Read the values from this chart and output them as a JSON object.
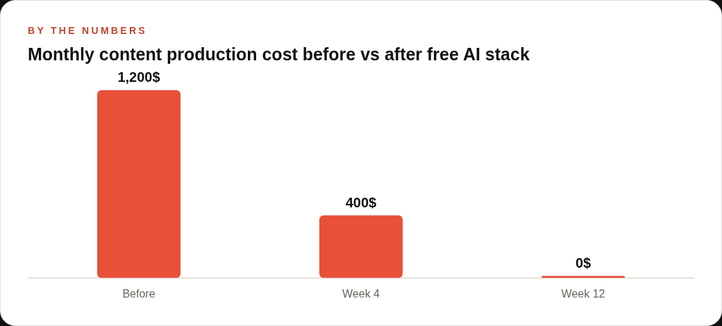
{
  "chart_data": {
    "type": "bar",
    "subtitle": "BY THE NUMBERS",
    "title": "Monthly content production cost before vs after free AI stack",
    "categories": [
      "Before",
      "Week 4",
      "Week 12"
    ],
    "values": [
      1200,
      400,
      0
    ],
    "value_labels": [
      "1,200$",
      "400$",
      "0$"
    ],
    "color": "#e8503a",
    "legend": false,
    "grid": false,
    "tick_labels": "x"
  }
}
